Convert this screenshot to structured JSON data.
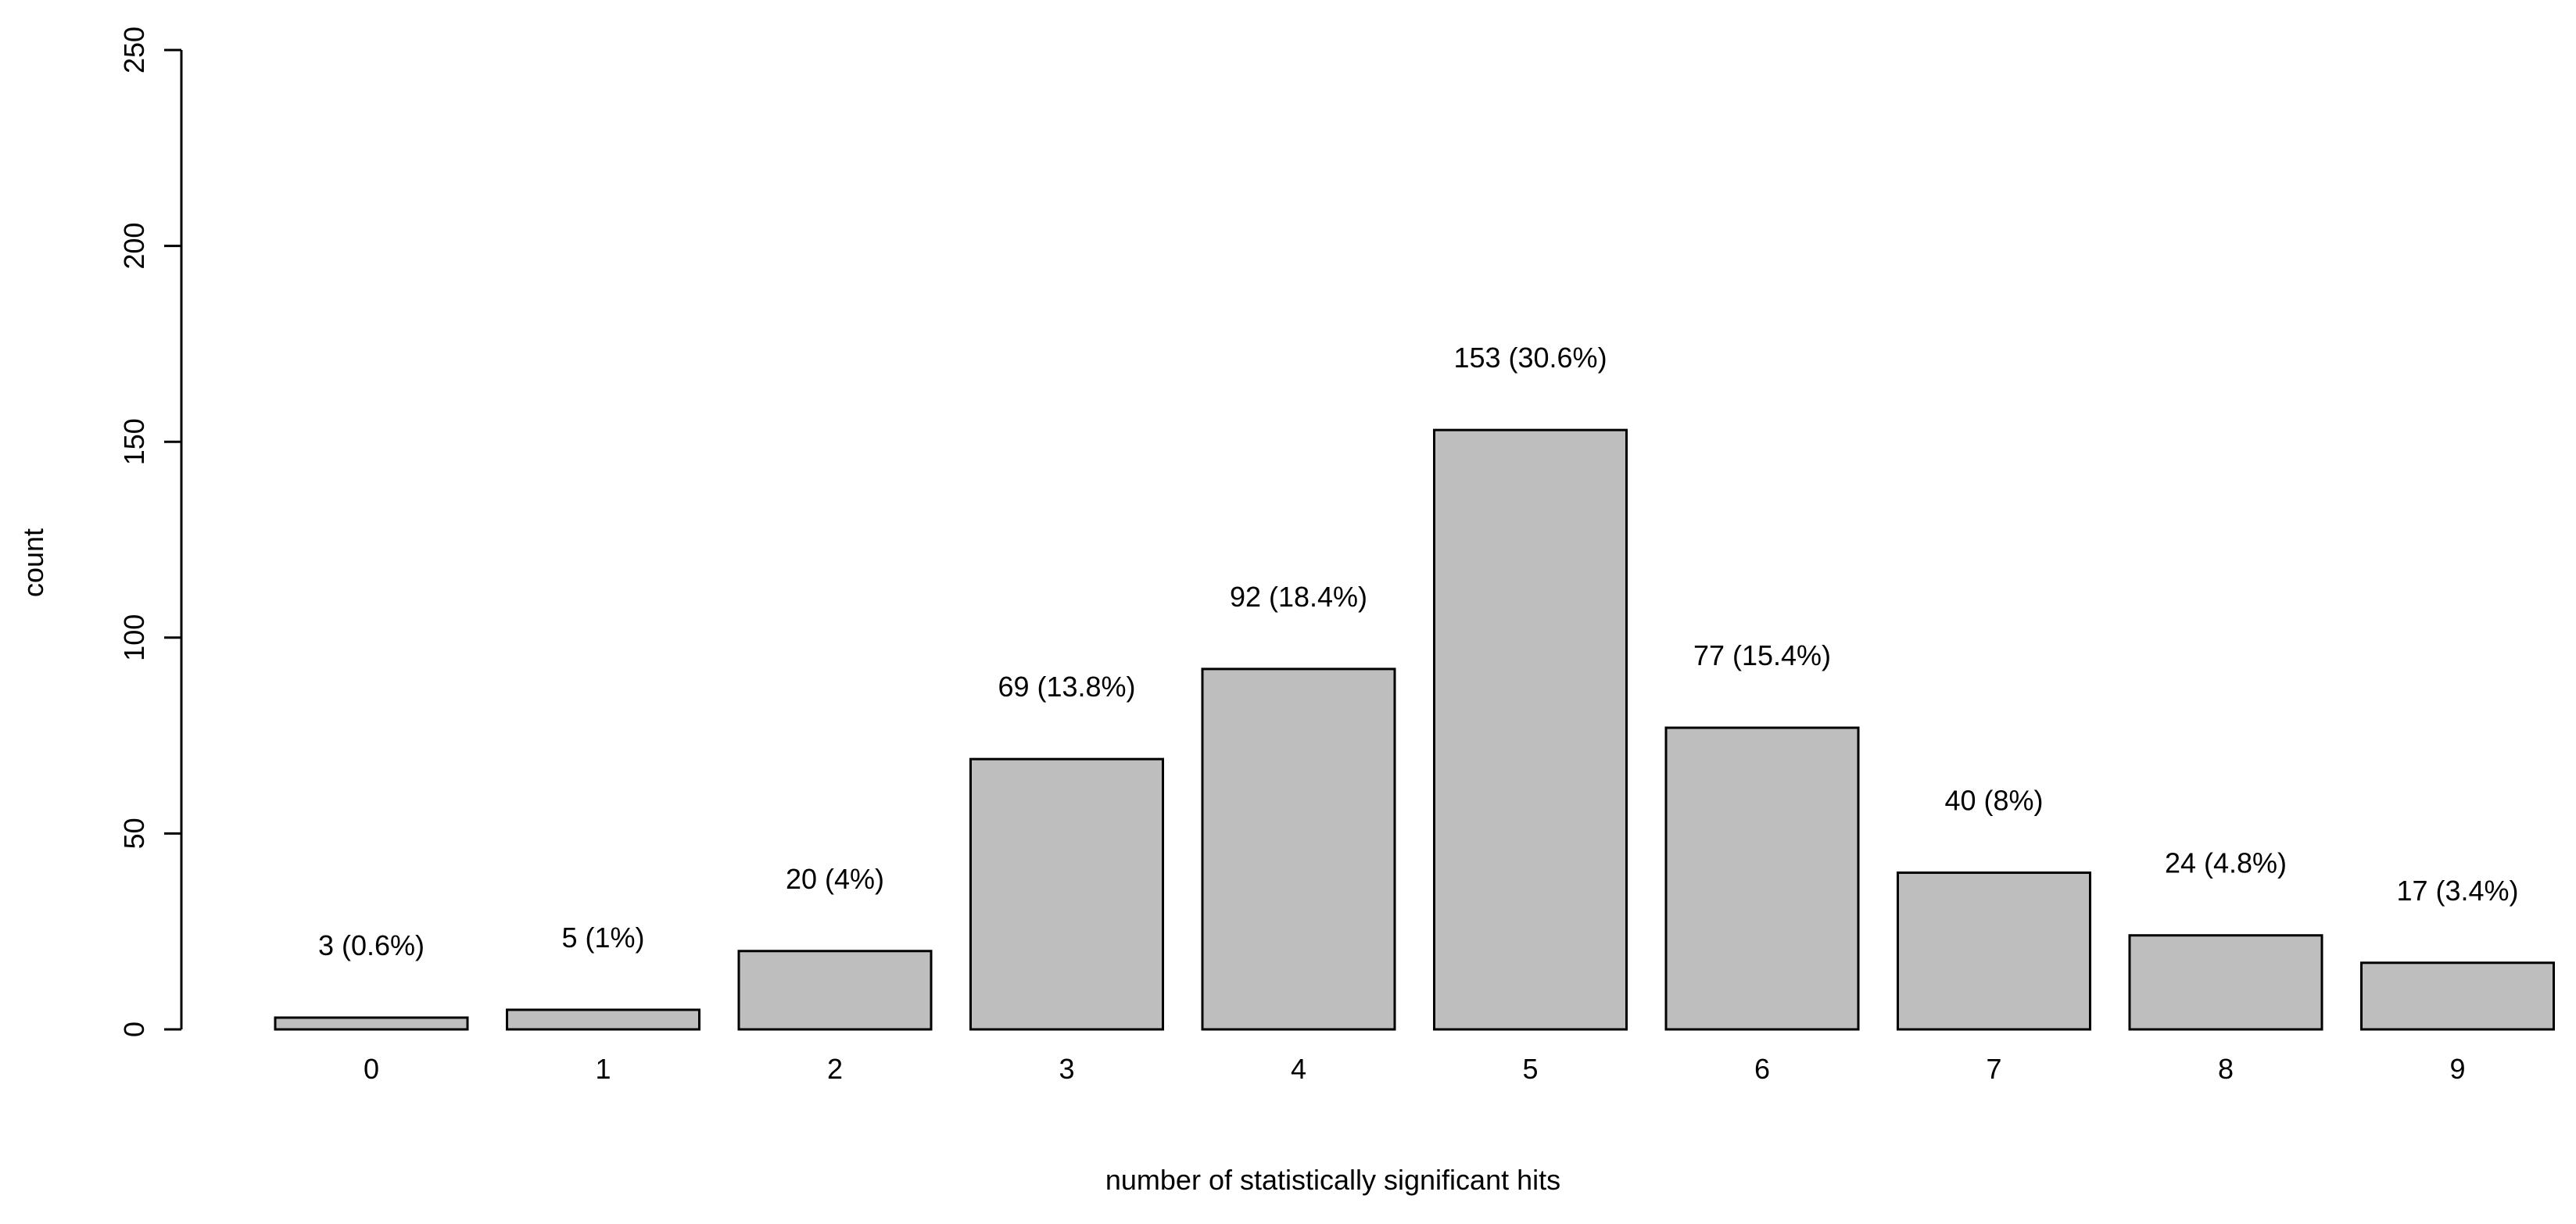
{
  "chart_data": {
    "type": "bar",
    "title": "",
    "xlabel": "number of statistically significant hits",
    "ylabel": "count",
    "categories": [
      "0",
      "1",
      "2",
      "3",
      "4",
      "5",
      "6",
      "7",
      "8",
      "9"
    ],
    "values": [
      3,
      5,
      20,
      69,
      92,
      153,
      77,
      40,
      24,
      17
    ],
    "data_labels": [
      "3 (0.6%)",
      "5 (1%)",
      "20 (4%)",
      "69 (13.8%)",
      "92 (18.4%)",
      "153 (30.6%)",
      "77 (15.4%)",
      "40 (8%)",
      "24 (4.8%)",
      "17 (3.4%)"
    ],
    "ylim": [
      0,
      250
    ],
    "yticks": [
      0,
      50,
      100,
      150,
      200,
      250
    ],
    "grid": false,
    "legend": "none",
    "bar_color": "#bebebe",
    "bar_border_color": "#000000"
  }
}
